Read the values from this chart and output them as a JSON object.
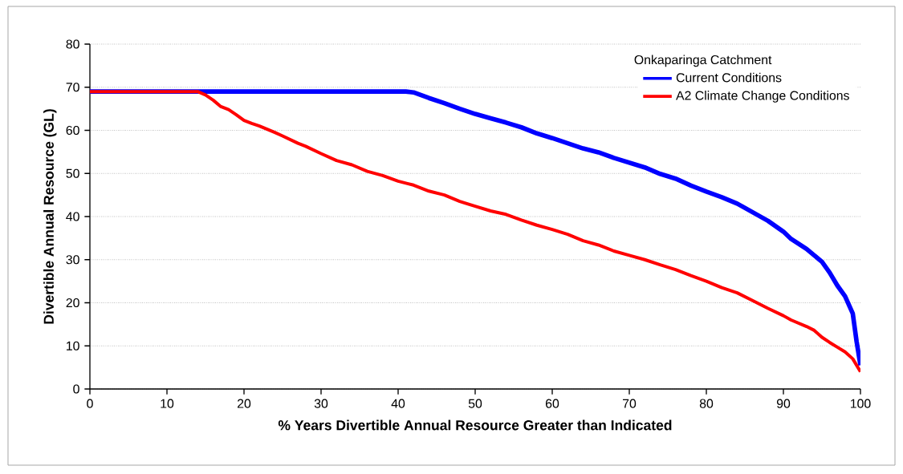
{
  "chart_data": {
    "type": "line",
    "xlabel": "% Years Divertible Annual Resource Greater than Indicated",
    "ylabel": "Divertible Annual Resource (GL)",
    "legend_title": "Onkaparinga Catchment",
    "legend": "top right",
    "grid": "y",
    "marker": "none",
    "line_style": "solid",
    "xlim": [
      0,
      100
    ],
    "ylim": [
      0,
      80
    ],
    "xticks": [
      0,
      10,
      20,
      30,
      40,
      50,
      60,
      70,
      80,
      90,
      100
    ],
    "yticks": [
      0,
      10,
      20,
      30,
      40,
      50,
      60,
      70,
      80
    ],
    "series": [
      {
        "name": "Current Conditions",
        "color": "#0000ff",
        "x": [
          0,
          10,
          20,
          30,
          41,
          42,
          44,
          46,
          48,
          50,
          52,
          54,
          56,
          58,
          60,
          62,
          64,
          66,
          68,
          70,
          72,
          74,
          76,
          78,
          80,
          82,
          84,
          86,
          88,
          90,
          91,
          93,
          95,
          96,
          97,
          98,
          99,
          99.5,
          100
        ],
        "values": [
          69,
          69,
          69,
          69,
          69,
          68.8,
          67.5,
          66.3,
          65,
          63.8,
          62.8,
          61.8,
          60.7,
          59.3,
          58.2,
          57,
          55.8,
          54.9,
          53.6,
          52.5,
          51.4,
          49.9,
          48.8,
          47.2,
          45.8,
          44.5,
          43,
          41,
          39,
          36.5,
          34.8,
          32.5,
          29.5,
          27,
          24,
          21.5,
          17.5,
          11,
          5.5
        ]
      },
      {
        "name": "A2 Climate Change Conditions",
        "color": "#ff0000",
        "x": [
          0,
          5,
          10,
          14,
          15,
          16,
          17,
          18,
          19,
          20,
          21,
          22,
          24,
          25,
          27,
          28,
          30,
          32,
          34,
          36,
          38,
          40,
          42,
          44,
          46,
          48,
          50,
          52,
          54,
          56,
          58,
          60,
          62,
          64,
          66,
          68,
          70,
          72,
          74,
          76,
          78,
          80,
          82,
          84,
          86,
          88,
          90,
          91,
          93,
          94,
          95,
          96,
          97,
          98,
          99,
          100
        ],
        "values": [
          69,
          69,
          69,
          69,
          68.2,
          67,
          65.5,
          64.8,
          63.6,
          62.3,
          61.6,
          61,
          59.5,
          58.7,
          57,
          56.3,
          54.6,
          53,
          52,
          50.5,
          49.5,
          48.2,
          47.3,
          45.9,
          45,
          43.5,
          42.4,
          41.3,
          40.5,
          39.2,
          38,
          37,
          35.9,
          34.4,
          33.4,
          32,
          31,
          30,
          28.8,
          27.7,
          26.3,
          25,
          23.5,
          22.3,
          20.5,
          18.7,
          17,
          16,
          14.5,
          13.6,
          12,
          10.8,
          9.7,
          8.6,
          7,
          4
        ]
      }
    ]
  }
}
